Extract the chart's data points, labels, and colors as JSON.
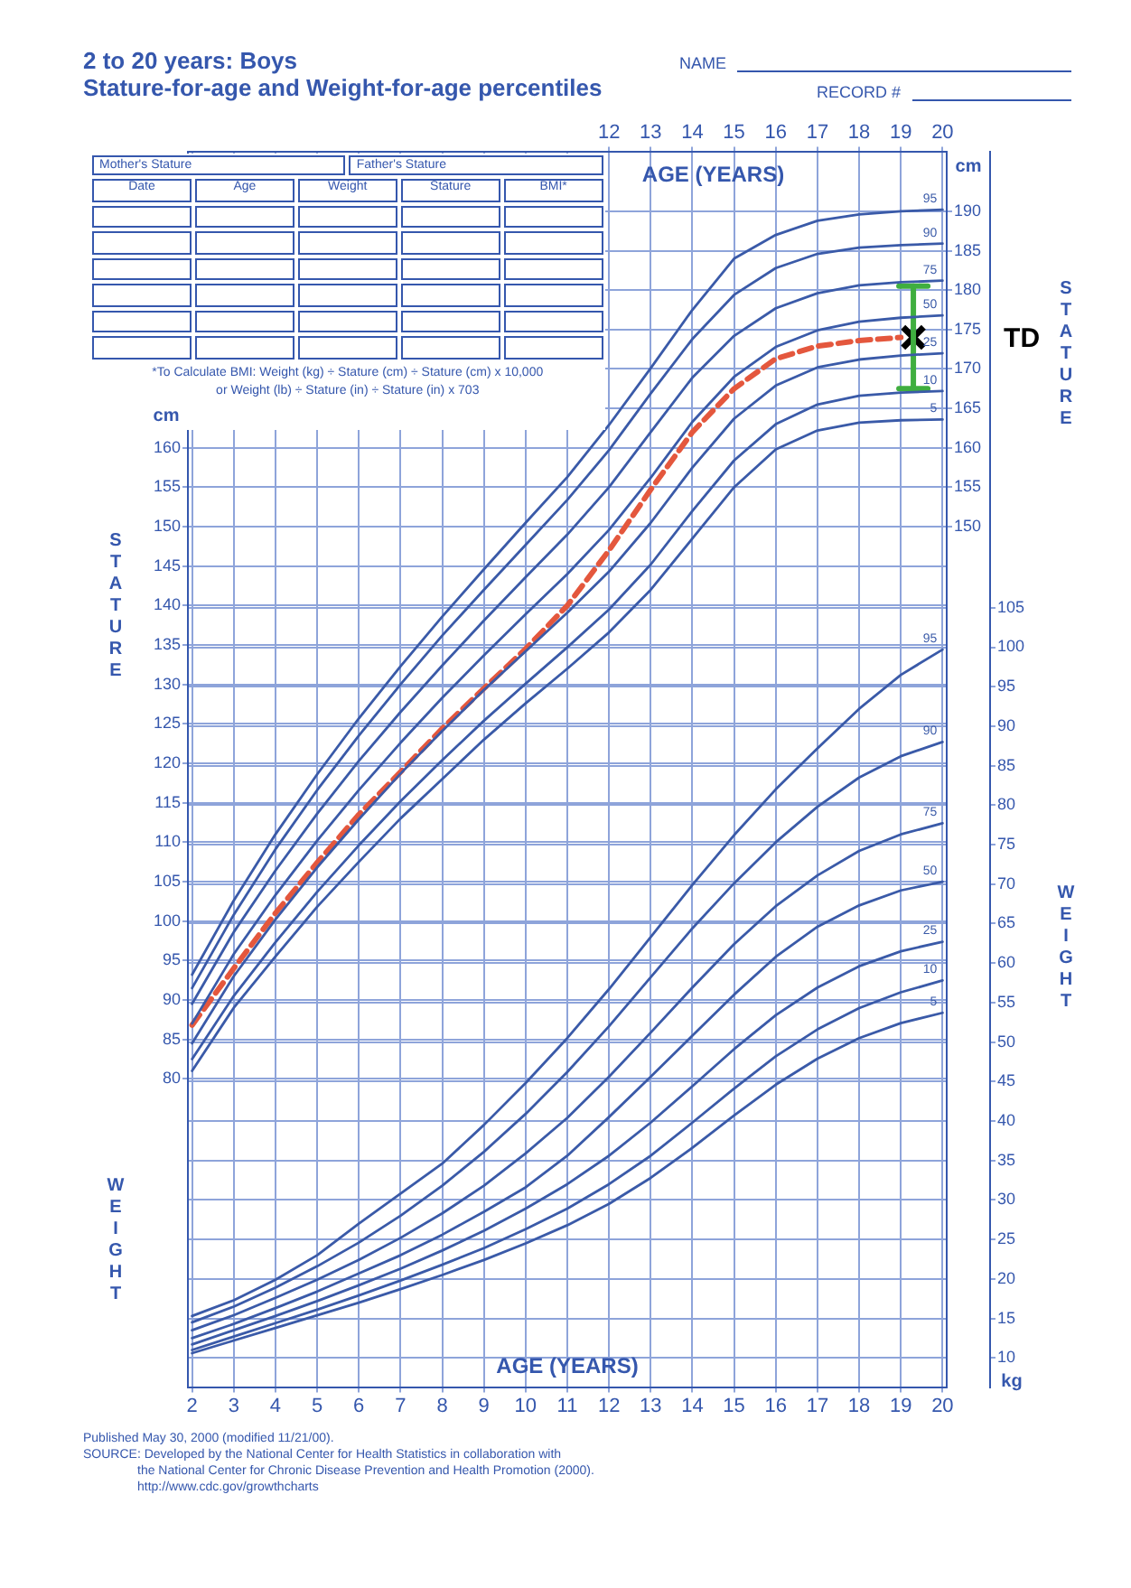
{
  "chart_data": {
    "type": "line",
    "title": "2 to 20 years: Boys",
    "subtitle": "Stature-for-age and Weight-for-age percentiles",
    "xlabel": "AGE (YEARS)",
    "x2label": "AGE (YEARS)",
    "ylabel": "cm",
    "y2label": "kg",
    "y3label": "cm",
    "x": [
      2,
      3,
      4,
      5,
      6,
      7,
      8,
      9,
      10,
      11,
      12,
      13,
      14,
      15,
      16,
      17,
      18,
      19,
      20
    ],
    "xlim": [
      1.9,
      20.1
    ],
    "xticks": [
      2,
      3,
      4,
      5,
      6,
      7,
      8,
      9,
      10,
      11,
      12,
      13,
      14,
      15,
      16,
      17,
      18,
      19,
      20
    ],
    "x2lim": [
      1.9,
      20.1
    ],
    "x2ticks": [
      12,
      13,
      14,
      15,
      16,
      17,
      18,
      19,
      20
    ],
    "ylim": [
      40.9,
      197.5
    ],
    "yticks": [
      80,
      85,
      90,
      95,
      100,
      105,
      110,
      115,
      120,
      125,
      130,
      135,
      140,
      145,
      150,
      155,
      160
    ],
    "y2lim": [
      6.3,
      162.7
    ],
    "y2ticks": [
      10,
      15,
      20,
      25,
      30,
      35,
      40,
      45,
      50,
      55,
      60,
      65,
      70,
      75,
      80,
      85,
      90,
      95,
      100,
      105
    ],
    "y3lim": [
      40.9,
      197.5
    ],
    "y3ticks": [
      150,
      155,
      160,
      165,
      170,
      175,
      180,
      185,
      190
    ],
    "grid": true,
    "marker": "none",
    "line_style": "solid",
    "series": [
      {
        "name": "95",
        "color": "#3a5aa8",
        "values": [
          93.2,
          102.6,
          111,
          118.6,
          125.7,
          132.3,
          138.6,
          144.6,
          150.5,
          156.3,
          162.9,
          170.1,
          177.5,
          184,
          187,
          188.8,
          189.6,
          190,
          190.2
        ]
      },
      {
        "name": "90",
        "color": "#3a5aa8",
        "values": [
          91.5,
          100.8,
          109.1,
          116.6,
          123.5,
          130,
          136.2,
          142,
          147.7,
          153.4,
          159.7,
          166.9,
          173.8,
          179.4,
          182.8,
          184.6,
          185.4,
          185.7,
          185.9
        ]
      },
      {
        "name": "75",
        "color": "#3a5aa8",
        "values": [
          89.5,
          98.6,
          106.4,
          113.6,
          120.3,
          126.5,
          132.4,
          138.1,
          143.6,
          149,
          155,
          162,
          168.9,
          174.2,
          177.7,
          179.6,
          180.6,
          181,
          181.2
        ]
      },
      {
        "name": "50",
        "color": "#3a5aa8",
        "values": [
          87,
          95.8,
          103.3,
          110.2,
          116.6,
          122.6,
          128.3,
          133.7,
          138.9,
          144,
          149.6,
          156.2,
          163.3,
          169,
          172.8,
          174.9,
          176,
          176.5,
          176.8
        ]
      },
      {
        "name": "25",
        "color": "#3a5aa8",
        "values": [
          84.5,
          93,
          100.2,
          106.8,
          112.9,
          118.7,
          124.1,
          129.3,
          134.2,
          139.1,
          144.3,
          150.5,
          157.5,
          163.7,
          167.9,
          170.2,
          171.2,
          171.7,
          172
        ]
      },
      {
        "name": "10",
        "color": "#3a5aa8",
        "values": [
          82.5,
          90.5,
          97.3,
          103.7,
          109.6,
          115.2,
          120.4,
          125.4,
          130.1,
          134.7,
          139.5,
          145.2,
          152,
          158.4,
          163,
          165.5,
          166.6,
          167,
          167.2
        ]
      },
      {
        "name": "5",
        "color": "#3a5aa8",
        "values": [
          81,
          89,
          95.5,
          101.8,
          107.5,
          113,
          118,
          123,
          127.6,
          132,
          136.6,
          142,
          148.5,
          155,
          159.8,
          162.2,
          163.2,
          163.5,
          163.6
        ]
      },
      {
        "name": "95",
        "color": "#3a5aa8",
        "axis": "y2",
        "values": [
          15.3,
          17.3,
          19.9,
          23,
          27,
          30.8,
          34.6,
          39.5,
          44.8,
          50.5,
          56.7,
          63.3,
          69.9,
          76.2,
          82,
          87.2,
          92.2,
          96.5,
          99.7
        ]
      },
      {
        "name": "90",
        "color": "#3a5aa8",
        "axis": "y2",
        "values": [
          14.5,
          16.5,
          18.9,
          21.6,
          24.6,
          28,
          31.8,
          36.1,
          40.9,
          46.2,
          52,
          58.2,
          64.4,
          70.1,
          75.3,
          79.8,
          83.5,
          86.2,
          88
        ]
      },
      {
        "name": "75",
        "color": "#3a5aa8",
        "axis": "y2",
        "values": [
          13.5,
          15.4,
          17.6,
          19.9,
          22.4,
          25.2,
          28.3,
          31.8,
          35.9,
          40.4,
          45.6,
          51.2,
          56.9,
          62.4,
          67.2,
          71.1,
          74.2,
          76.3,
          77.7
        ]
      },
      {
        "name": "50",
        "color": "#3a5aa8",
        "axis": "y2",
        "values": [
          12.5,
          14.3,
          16.3,
          18.4,
          20.7,
          23,
          25.6,
          28.5,
          31.6,
          35.6,
          40.5,
          45.6,
          50.8,
          56,
          60.8,
          64.6,
          67.3,
          69.2,
          70.3
        ]
      },
      {
        "name": "25",
        "color": "#3a5aa8",
        "axis": "y2",
        "values": [
          11.7,
          13.5,
          15.3,
          17.2,
          19.2,
          21.3,
          23.6,
          26.1,
          28.9,
          32,
          35.6,
          39.8,
          44.4,
          49.1,
          53.4,
          56.9,
          59.6,
          61.5,
          62.7
        ]
      },
      {
        "name": "10",
        "color": "#3a5aa8",
        "axis": "y2",
        "values": [
          11,
          12.7,
          14.4,
          16.1,
          17.9,
          19.8,
          21.8,
          23.9,
          26.3,
          28.9,
          32,
          35.6,
          39.8,
          44.1,
          48.2,
          51.6,
          54.3,
          56.3,
          57.8
        ]
      },
      {
        "name": "5",
        "color": "#3a5aa8",
        "axis": "y2",
        "values": [
          10.6,
          12.2,
          13.8,
          15.4,
          17,
          18.7,
          20.5,
          22.4,
          24.5,
          26.8,
          29.5,
          32.8,
          36.6,
          40.7,
          44.6,
          47.9,
          50.5,
          52.4,
          53.7
        ]
      },
      {
        "type": "line",
        "color": "#e4573d",
        "line_style": "dashed",
        "x": [
          2,
          3,
          4,
          5,
          6,
          7,
          8,
          9,
          10,
          11,
          12,
          13,
          14,
          15,
          16,
          17,
          18,
          19
        ],
        "values": [
          86.8,
          94,
          101,
          107.4,
          113.5,
          118.9,
          124.4,
          129.5,
          134.5,
          140,
          147,
          154.7,
          162,
          167.5,
          171.3,
          172.9,
          173.6,
          174
        ]
      },
      {
        "type": "line",
        "color": "#3fae3f",
        "x": [
          19.3,
          19.3
        ],
        "values": [
          167.5,
          180.5
        ]
      },
      {
        "type": "scatter",
        "color": "#000000",
        "marker": "cross",
        "x": [
          19.3
        ],
        "values": [
          174
        ]
      }
    ],
    "annotations": [
      "NAME",
      "RECORD #",
      "Mother's Stature",
      "Father's Stature",
      "Date",
      "Age",
      "Weight",
      "Stature",
      "BMI*",
      "*To Calculate BMI: Weight (kg) ÷ Stature (cm) ÷ Stature (cm) x 10,000",
      "or Weight (lb) ÷ Stature (in) ÷ Stature (in) x 703",
      "STATURE",
      "STATURE",
      "WEIGHT",
      "WEIGHT",
      "Published May 30, 2000 (modified 11/21/00).",
      "SOURCE: Developed by the National Center for Health Statistics in collaboration with",
      "the National Center for Chronic Disease Prevention and Health Promotion (2000).",
      "http://www.cdc.gov/growthcharts",
      "TD"
    ]
  }
}
